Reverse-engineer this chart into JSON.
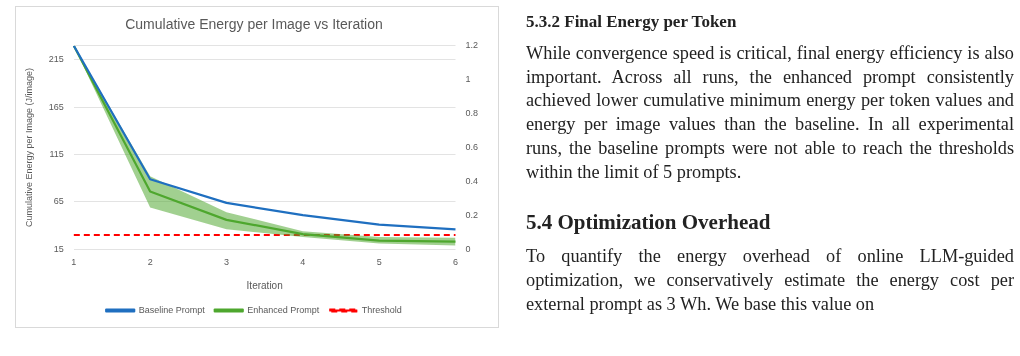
{
  "chart_data": {
    "type": "line",
    "title": "Cumulative Energy per Image vs Iteration",
    "xlabel": "Iteration",
    "ylabel": "Cumulative Energy per Image (J/image)",
    "categories": [
      "1",
      "2",
      "3",
      "4",
      "5",
      "6"
    ],
    "series": [
      {
        "name": "Baseline Prompt",
        "color": "#1f6fc0",
        "values": [
          230,
          89,
          64,
          51,
          41,
          36
        ]
      },
      {
        "name": "Enhanced Prompt",
        "color": "#4ea72e",
        "values": [
          230,
          76,
          46,
          31,
          24,
          23
        ],
        "lower": [
          230,
          59,
          36,
          28,
          21,
          19
        ],
        "upper": [
          230,
          92,
          54,
          34,
          28,
          27
        ]
      },
      {
        "name": "Threshold",
        "color": "#ff0000",
        "values": [
          30,
          30,
          30,
          30,
          30,
          30
        ],
        "line_style": "dashed"
      }
    ],
    "ylim": [
      15,
      230
    ],
    "yticks": [
      15,
      65,
      115,
      165,
      215,
      {
        "value": 230,
        "label": null
      }
    ],
    "y2lim": [
      0,
      1.2
    ],
    "y2ticks": [
      0,
      0.2,
      0.4,
      0.6,
      0.8,
      1,
      1.2
    ],
    "grid": "y",
    "legend": "bottom",
    "marker": "none",
    "line_style": "solid",
    "annotations": [
      "5.3.2 Final Energy per Token",
      "While convergence speed is critical, final energy efficiency is also important. Across all runs, the enhanced prompt consistently achieved lower cumulative minimum energy per token values and energy per image values than the baseline. In all experimental runs, the baseline prompts were not able to reach the thresholds within the limit of 5 prompts.",
      "5.4 Optimization Overhead",
      "To quantify the energy overhead of online LLM-guided optimization, we conservatively estimate the energy cost per external prompt as 3 Wh. We base this value on"
    ]
  }
}
